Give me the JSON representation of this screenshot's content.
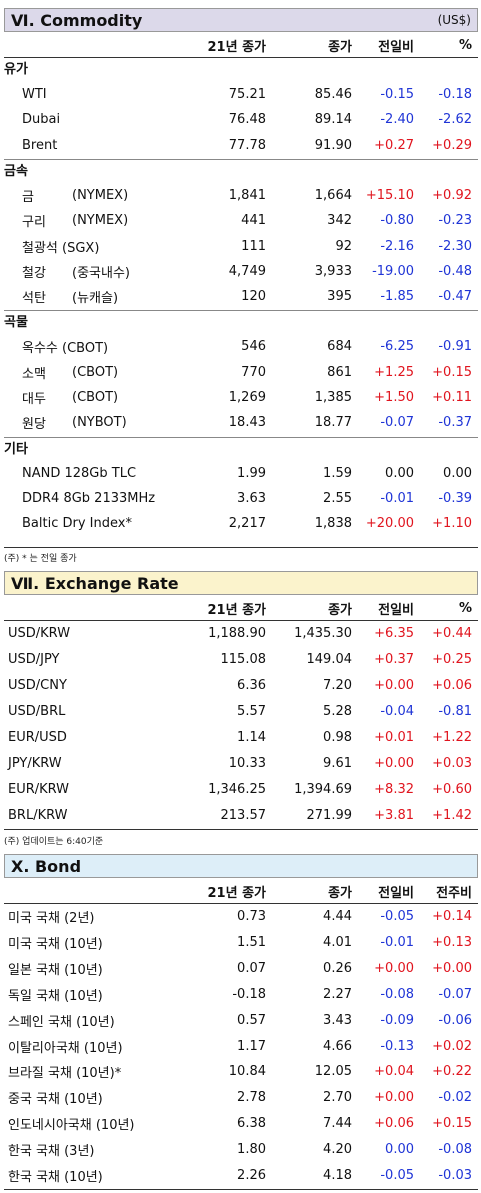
{
  "commodity": {
    "title": "Ⅵ. Commodity",
    "unit": "(US$)",
    "headers": [
      "21년 종가",
      "종가",
      "전일비",
      "%"
    ],
    "groups": [
      {
        "label": "유가",
        "rows": [
          {
            "name": "WTI",
            "sub": "",
            "a": "75.21",
            "b": "85.46",
            "c": "-0.15",
            "d": "-0.18"
          },
          {
            "name": "Dubai",
            "sub": "",
            "a": "76.48",
            "b": "89.14",
            "c": "-2.40",
            "d": "-2.62"
          },
          {
            "name": "Brent",
            "sub": "",
            "a": "77.78",
            "b": "91.90",
            "c": "+0.27",
            "d": "+0.29"
          }
        ]
      },
      {
        "label": "금속",
        "rows": [
          {
            "name": "금",
            "sub": "(NYMEX)",
            "a": "1,841",
            "b": "1,664",
            "c": "+15.10",
            "d": "+0.92"
          },
          {
            "name": "구리",
            "sub": "(NYMEX)",
            "a": "441",
            "b": "342",
            "c": "-0.80",
            "d": "-0.23"
          },
          {
            "name": "철광석 (SGX)",
            "sub": "",
            "a": "111",
            "b": "92",
            "c": "-2.16",
            "d": "-2.30"
          },
          {
            "name": "철강",
            "sub": "(중국내수)",
            "a": "4,749",
            "b": "3,933",
            "c": "-19.00",
            "d": "-0.48"
          },
          {
            "name": "석탄",
            "sub": "(뉴캐슬)",
            "a": "120",
            "b": "395",
            "c": "-1.85",
            "d": "-0.47"
          }
        ]
      },
      {
        "label": "곡물",
        "rows": [
          {
            "name": "옥수수 (CBOT)",
            "sub": "",
            "a": "546",
            "b": "684",
            "c": "-6.25",
            "d": "-0.91"
          },
          {
            "name": "소맥",
            "sub": "(CBOT)",
            "a": "770",
            "b": "861",
            "c": "+1.25",
            "d": "+0.15"
          },
          {
            "name": "대두",
            "sub": "(CBOT)",
            "a": "1,269",
            "b": "1,385",
            "c": "+1.50",
            "d": "+0.11"
          },
          {
            "name": "원당",
            "sub": "(NYBOT)",
            "a": "18.43",
            "b": "18.77",
            "c": "-0.07",
            "d": "-0.37"
          }
        ]
      },
      {
        "label": "기타",
        "rows": [
          {
            "name": "NAND 128Gb TLC",
            "sub": "",
            "a": "1.99",
            "b": "1.59",
            "c": "0.00",
            "d": "0.00"
          },
          {
            "name": "DDR4 8Gb 2133MHz",
            "sub": "",
            "a": "3.63",
            "b": "2.55",
            "c": "-0.01",
            "d": "-0.39"
          },
          {
            "name": "Baltic Dry Index*",
            "sub": "",
            "a": "2,217",
            "b": "1,838",
            "c": "+20.00",
            "d": "+1.10"
          }
        ]
      }
    ],
    "note": "(주) * 는 전일 종가"
  },
  "exchange": {
    "title": "Ⅶ. Exchange Rate",
    "headers": [
      "21년 종가",
      "종가",
      "전일비",
      "%"
    ],
    "rows": [
      {
        "name": "USD/KRW",
        "a": "1,188.90",
        "b": "1,435.30",
        "c": "+6.35",
        "d": "+0.44"
      },
      {
        "name": "USD/JPY",
        "a": "115.08",
        "b": "149.04",
        "c": "+0.37",
        "d": "+0.25"
      },
      {
        "name": "USD/CNY",
        "a": "6.36",
        "b": "7.20",
        "c": "+0.00",
        "d": "+0.06"
      },
      {
        "name": "USD/BRL",
        "a": "5.57",
        "b": "5.28",
        "c": "-0.04",
        "d": "-0.81"
      },
      {
        "name": "EUR/USD",
        "a": "1.14",
        "b": "0.98",
        "c": "+0.01",
        "d": "+1.22"
      },
      {
        "name": "JPY/KRW",
        "a": "10.33",
        "b": "9.61",
        "c": "+0.00",
        "d": "+0.03"
      },
      {
        "name": "EUR/KRW",
        "a": "1,346.25",
        "b": "1,394.69",
        "c": "+8.32",
        "d": "+0.60"
      },
      {
        "name": "BRL/KRW",
        "a": "213.57",
        "b": "271.99",
        "c": "+3.81",
        "d": "+1.42"
      }
    ],
    "note": "(주) 업데이트는 6:40기준"
  },
  "bond": {
    "title": "Ⅹ. Bond",
    "headers": [
      "21년 종가",
      "종가",
      "전일비",
      "전주비"
    ],
    "rows": [
      {
        "name": "미국 국채 (2년)",
        "a": "0.73",
        "b": "4.44",
        "c": "-0.05",
        "d": "+0.14"
      },
      {
        "name": "미국 국채 (10년)",
        "a": "1.51",
        "b": "4.01",
        "c": "-0.01",
        "d": "+0.13"
      },
      {
        "name": "일본 국채 (10년)",
        "a": "0.07",
        "b": "0.26",
        "c": "+0.00",
        "d": "+0.00"
      },
      {
        "name": "독일 국채 (10년)",
        "a": "-0.18",
        "b": "2.27",
        "c": "-0.08",
        "d": "-0.07"
      },
      {
        "name": "스페인 국채 (10년)",
        "a": "0.57",
        "b": "3.43",
        "c": "-0.09",
        "d": "-0.06"
      },
      {
        "name": "이탈리아국채 (10년)",
        "a": "1.17",
        "b": "4.66",
        "c": "-0.13",
        "d": "+0.02"
      },
      {
        "name": "브라질 국채 (10년)*",
        "a": "10.84",
        "b": "12.05",
        "c": "+0.04",
        "d": "+0.22"
      },
      {
        "name": "중국 국채 (10년)",
        "a": "2.78",
        "b": "2.70",
        "c": "+0.00",
        "d": "-0.02"
      },
      {
        "name": "인도네시아국채 (10년)",
        "a": "6.38",
        "b": "7.44",
        "c": "+0.06",
        "d": "+0.15"
      },
      {
        "name": "한국 국채 (3년)",
        "a": "1.80",
        "b": "4.20",
        "c": "0.00",
        "d": "-0.08"
      },
      {
        "name": "한국 국채 (10년)",
        "a": "2.26",
        "b": "4.18",
        "c": "-0.05",
        "d": "-0.03"
      }
    ]
  },
  "colors": {
    "positive": "#e0141e",
    "negative": "#1f34d6"
  }
}
